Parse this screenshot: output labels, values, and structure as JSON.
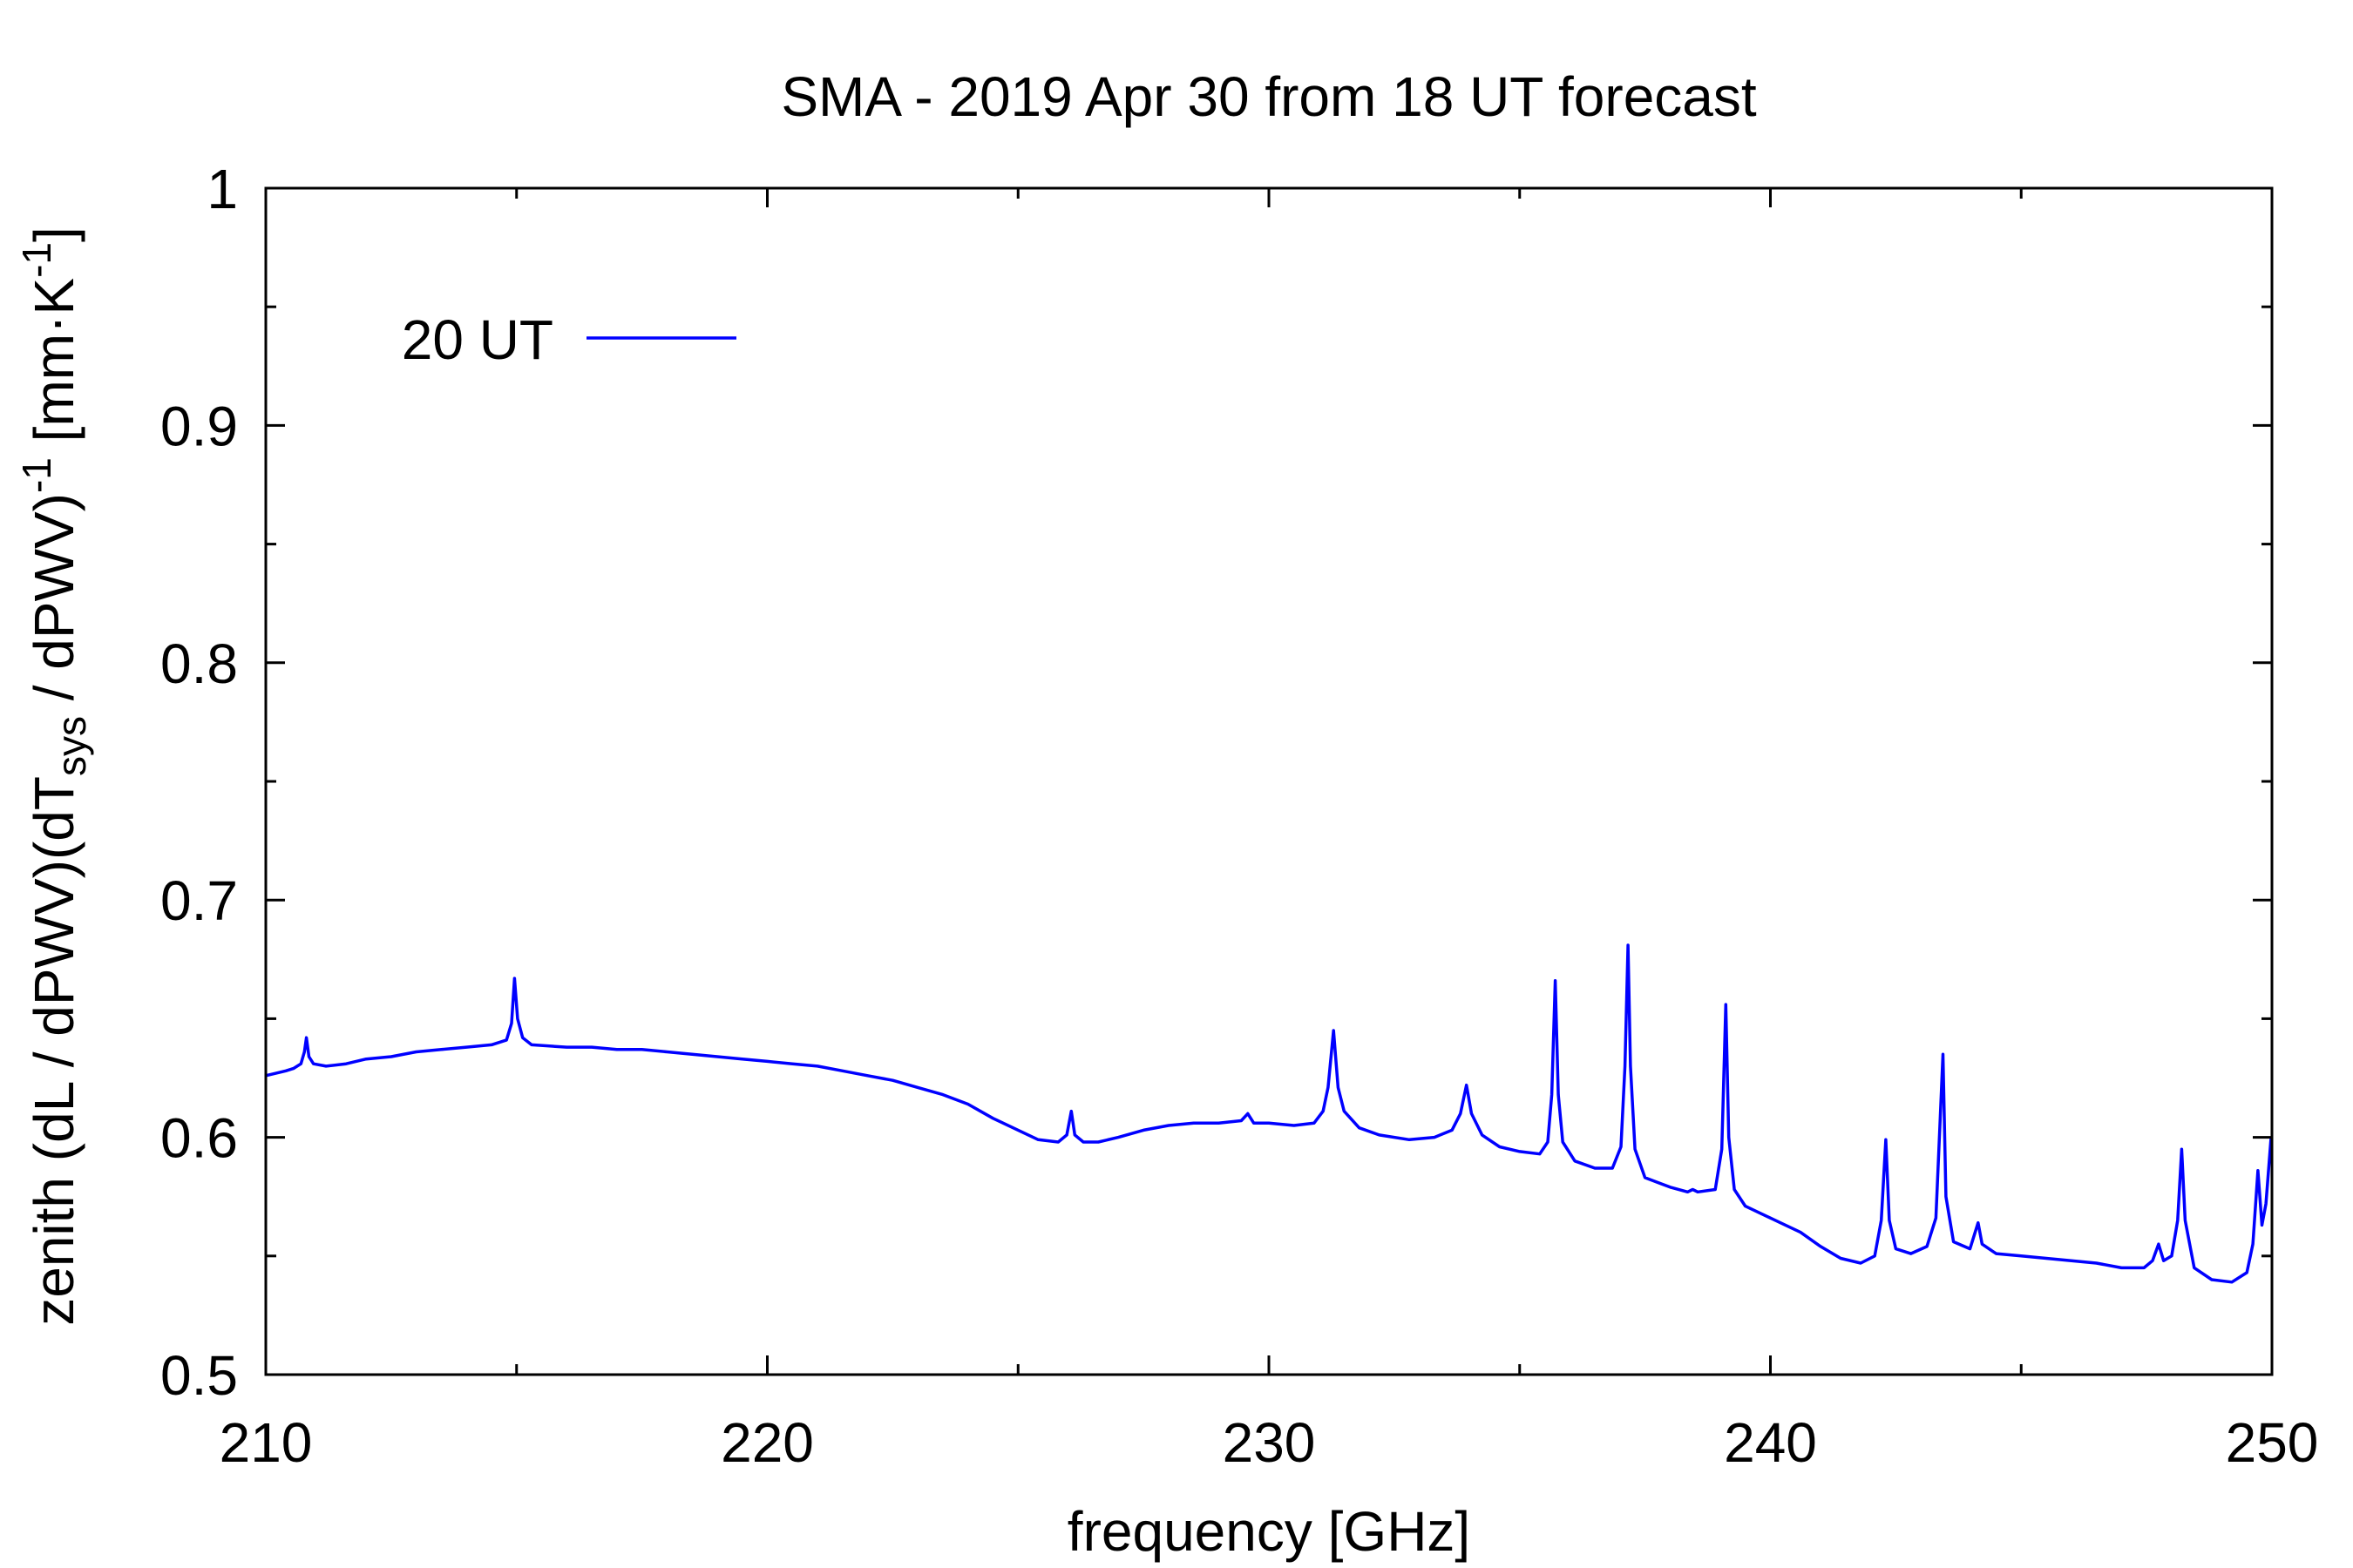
{
  "chart_data": {
    "type": "line",
    "title": "SMA - 2019 Apr 30 from 18 UT forecast",
    "xlabel": "frequency [GHz]",
    "ylabel": [
      "zenith (dL / dPWV)(dT",
      "sys",
      " / dPWV)",
      "-1",
      " [mm·K",
      "-1",
      "]"
    ],
    "xlim": [
      210,
      250
    ],
    "ylim": [
      0.5,
      1
    ],
    "xtick_labels": [
      "210",
      "220",
      "230",
      "240",
      "250"
    ],
    "ytick_labels": [
      "0.5",
      "0.6",
      "0.7",
      "0.8",
      "0.9",
      "1"
    ],
    "x_minor_ticks": [
      215,
      225,
      235,
      245
    ],
    "y_minor_ticks": [
      0.55,
      0.65,
      0.75,
      0.85,
      0.95
    ],
    "grid": false,
    "legend_position": "top-left",
    "series": [
      {
        "name": "20 UT",
        "color": "#0000ff",
        "x": [
          210.0,
          210.2,
          210.4,
          210.55,
          210.7,
          210.77,
          210.81,
          210.86,
          210.95,
          211.2,
          211.6,
          212.0,
          212.5,
          213.0,
          213.5,
          214.0,
          214.5,
          214.8,
          214.9,
          214.96,
          215.02,
          215.12,
          215.3,
          216.0,
          216.5,
          217.0,
          217.5,
          218.0,
          218.5,
          219.0,
          219.5,
          220.0,
          220.5,
          221.0,
          221.5,
          222.0,
          222.5,
          223.0,
          223.5,
          224.0,
          224.5,
          225.0,
          225.4,
          225.8,
          225.97,
          226.06,
          226.13,
          226.3,
          226.6,
          227.0,
          227.5,
          228.0,
          228.5,
          229.0,
          229.45,
          229.58,
          229.7,
          230.0,
          230.5,
          230.9,
          231.08,
          231.18,
          231.29,
          231.38,
          231.5,
          231.8,
          232.2,
          232.8,
          233.3,
          233.65,
          233.82,
          233.94,
          234.04,
          234.25,
          234.6,
          235.0,
          235.4,
          235.56,
          235.64,
          235.71,
          235.77,
          235.86,
          236.1,
          236.5,
          236.85,
          237.02,
          237.1,
          237.16,
          237.21,
          237.3,
          237.5,
          238.0,
          238.35,
          238.45,
          238.55,
          238.9,
          239.03,
          239.11,
          239.17,
          239.28,
          239.5,
          239.8,
          240.2,
          240.6,
          241.0,
          241.4,
          241.8,
          242.08,
          242.21,
          242.3,
          242.37,
          242.5,
          242.8,
          243.12,
          243.3,
          243.44,
          243.5,
          243.65,
          243.98,
          244.14,
          244.22,
          244.5,
          245.0,
          245.5,
          246.0,
          246.5,
          247.0,
          247.45,
          247.62,
          247.74,
          247.84,
          248.0,
          248.12,
          248.2,
          248.27,
          248.45,
          248.8,
          249.2,
          249.5,
          249.62,
          249.72,
          249.8,
          249.88,
          249.98
        ],
        "y": [
          0.626,
          0.627,
          0.628,
          0.629,
          0.631,
          0.636,
          0.642,
          0.634,
          0.631,
          0.63,
          0.631,
          0.633,
          0.634,
          0.636,
          0.637,
          0.638,
          0.639,
          0.641,
          0.648,
          0.667,
          0.65,
          0.642,
          0.639,
          0.638,
          0.638,
          0.637,
          0.637,
          0.636,
          0.635,
          0.634,
          0.633,
          0.632,
          0.631,
          0.63,
          0.628,
          0.626,
          0.624,
          0.621,
          0.618,
          0.614,
          0.608,
          0.603,
          0.599,
          0.598,
          0.601,
          0.611,
          0.601,
          0.598,
          0.598,
          0.6,
          0.603,
          0.605,
          0.606,
          0.606,
          0.607,
          0.61,
          0.606,
          0.606,
          0.605,
          0.606,
          0.611,
          0.621,
          0.645,
          0.621,
          0.611,
          0.604,
          0.601,
          0.599,
          0.6,
          0.603,
          0.61,
          0.622,
          0.61,
          0.601,
          0.596,
          0.594,
          0.593,
          0.598,
          0.618,
          0.666,
          0.618,
          0.598,
          0.59,
          0.587,
          0.587,
          0.596,
          0.63,
          0.681,
          0.63,
          0.595,
          0.583,
          0.579,
          0.577,
          0.578,
          0.577,
          0.578,
          0.595,
          0.656,
          0.6,
          0.578,
          0.571,
          0.568,
          0.564,
          0.56,
          0.554,
          0.549,
          0.547,
          0.55,
          0.565,
          0.599,
          0.565,
          0.553,
          0.551,
          0.554,
          0.566,
          0.635,
          0.575,
          0.556,
          0.553,
          0.564,
          0.555,
          0.551,
          0.55,
          0.549,
          0.548,
          0.547,
          0.545,
          0.545,
          0.548,
          0.555,
          0.548,
          0.55,
          0.565,
          0.595,
          0.565,
          0.545,
          0.54,
          0.539,
          0.543,
          0.555,
          0.586,
          0.563,
          0.572,
          0.599
        ]
      }
    ]
  }
}
